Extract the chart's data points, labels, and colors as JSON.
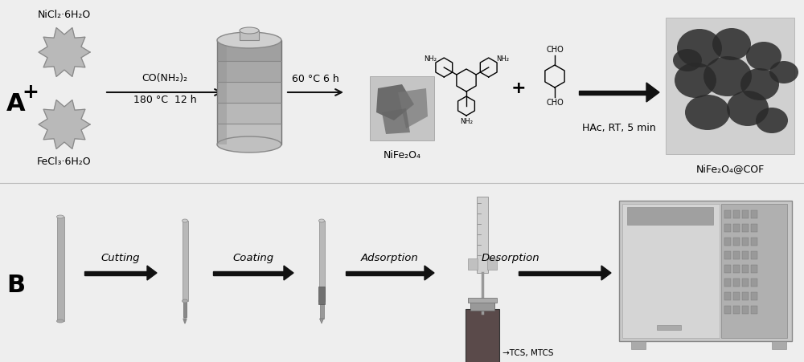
{
  "bg_color": "#eeeeee",
  "panel_A_label": "A",
  "panel_B_label": "B",
  "label_fontsize": 22,
  "label_fontweight": "bold",
  "nicl2": "NiCl₂·6H₂O",
  "fecl3": "FeCl₃·6H₂O",
  "plus1": "+",
  "reagent1": "CO(NH₂)₂",
  "conditions1": "180 °C  12 h",
  "temp2": "60 °C 6 h",
  "nife2o4": "NiFe₂O₄",
  "reagent2": "HAc, RT, 5 min",
  "product": "NiFe₂O₄@COF",
  "cutting": "Cutting",
  "coating": "Coating",
  "adsorption": "Adsorption",
  "desorption": "Desorption",
  "tcs": "→TCS, MTCS",
  "gear_color": "#b0b0b0",
  "gear_edge_color": "#888888",
  "arrow_color": "#111111"
}
